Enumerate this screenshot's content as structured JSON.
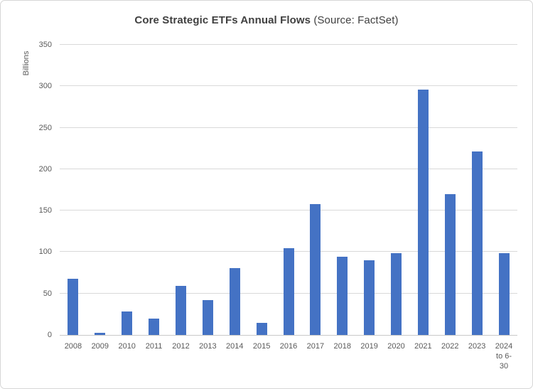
{
  "window": {
    "background_color": "#ffffff",
    "border_color": "#d6d6d6"
  },
  "chart_data": {
    "type": "bar",
    "title_bold": "Core Strategic ETFs Annual Flows",
    "title_regular": "(Source: FactSet)",
    "ylabel": "Billions",
    "xlabel": "",
    "categories": [
      "2008",
      "2009",
      "2010",
      "2011",
      "2012",
      "2013",
      "2014",
      "2015",
      "2016",
      "2017",
      "2018",
      "2019",
      "2020",
      "2021",
      "2022",
      "2023",
      "2024 to 6-30"
    ],
    "values": [
      68,
      3,
      28,
      20,
      59,
      42,
      81,
      15,
      105,
      158,
      94,
      90,
      99,
      296,
      170,
      221,
      99
    ],
    "ylim": [
      0,
      350
    ],
    "yticks": [
      0,
      50,
      100,
      150,
      200,
      250,
      300,
      350
    ],
    "grid": "horizontal",
    "legend_position": "none",
    "colors": {
      "bar": "#4472c4",
      "gridline": "#d9d9d9",
      "axis_line": "#c9c9c9",
      "tick_text": "#595959",
      "title_text": "#404040"
    }
  }
}
